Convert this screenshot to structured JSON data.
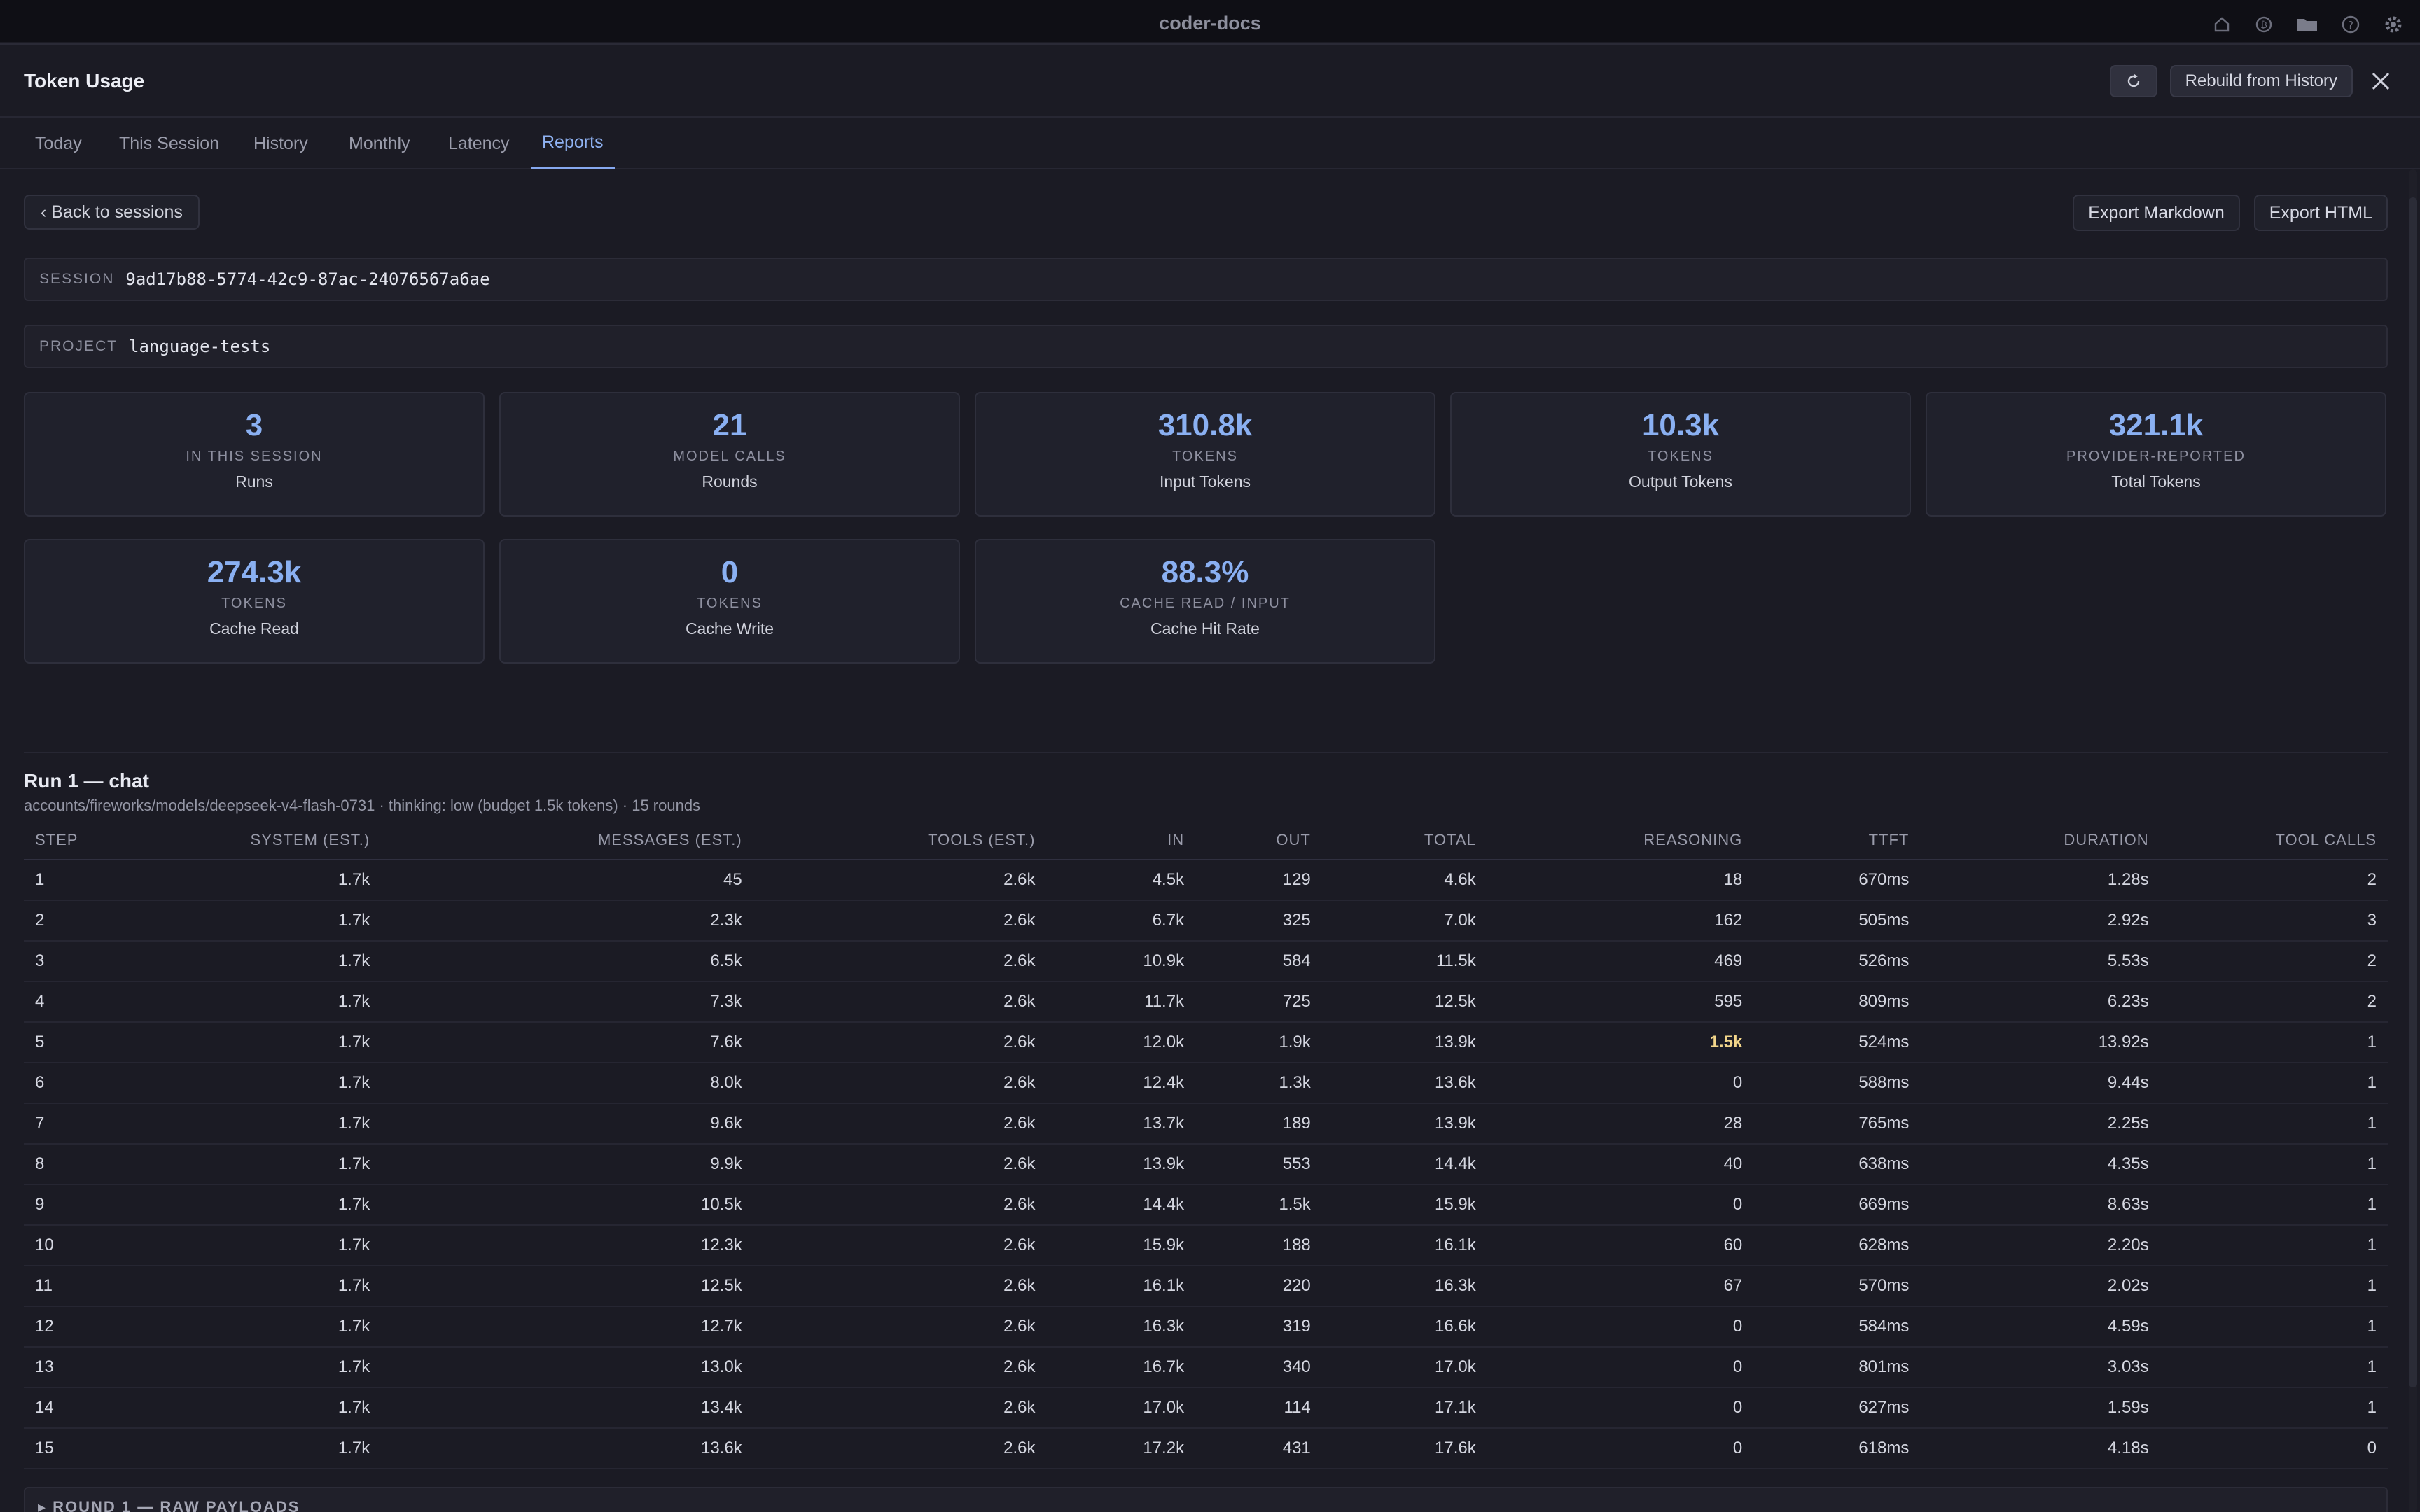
{
  "window": {
    "title": "coder-docs",
    "icons": [
      "home-icon",
      "coin-icon",
      "folder-icon",
      "help-icon",
      "settings-icon"
    ]
  },
  "panel": {
    "title": "Token Usage",
    "rebuild_label": "Rebuild from History",
    "refresh_icon": "refresh-icon",
    "close_icon": "close-icon"
  },
  "tabs": [
    {
      "label": "Today",
      "active": false
    },
    {
      "label": "This Session",
      "active": false
    },
    {
      "label": "History",
      "active": false
    },
    {
      "label": "Monthly",
      "active": false
    },
    {
      "label": "Latency",
      "active": false
    },
    {
      "label": "Reports",
      "active": true
    }
  ],
  "toolbar": {
    "back_label": "‹ Back to sessions",
    "export_markdown": "Export Markdown",
    "export_html": "Export HTML"
  },
  "session": {
    "label": "SESSION",
    "value": "9ad17b88-5774-42c9-87ac-24076567a6ae"
  },
  "project": {
    "label": "PROJECT",
    "value": "language-tests"
  },
  "stats": [
    {
      "value": "3",
      "sub": "IN THIS SESSION",
      "label": "Runs"
    },
    {
      "value": "21",
      "sub": "MODEL CALLS",
      "label": "Rounds"
    },
    {
      "value": "310.8k",
      "sub": "TOKENS",
      "label": "Input Tokens"
    },
    {
      "value": "10.3k",
      "sub": "TOKENS",
      "label": "Output Tokens"
    },
    {
      "value": "321.1k",
      "sub": "PROVIDER-REPORTED",
      "label": "Total Tokens"
    },
    {
      "value": "274.3k",
      "sub": "TOKENS",
      "label": "Cache Read"
    },
    {
      "value": "0",
      "sub": "TOKENS",
      "label": "Cache Write"
    },
    {
      "value": "88.3%",
      "sub": "CACHE READ / INPUT",
      "label": "Cache Hit Rate"
    }
  ],
  "run": {
    "title": "Run 1 — chat",
    "subtitle": "accounts/fireworks/models/deepseek-v4-flash-0731 · thinking: low (budget 1.5k tokens) · 15 rounds"
  },
  "table": {
    "headers": [
      "STEP",
      "SYSTEM (EST.)",
      "MESSAGES (EST.)",
      "TOOLS (EST.)",
      "IN",
      "OUT",
      "TOTAL",
      "REASONING",
      "TTFT",
      "DURATION",
      "TOOL CALLS"
    ],
    "rows": [
      [
        "1",
        "1.7k",
        "45",
        "2.6k",
        "4.5k",
        "129",
        "4.6k",
        "18",
        "670ms",
        "1.28s",
        "2"
      ],
      [
        "2",
        "1.7k",
        "2.3k",
        "2.6k",
        "6.7k",
        "325",
        "7.0k",
        "162",
        "505ms",
        "2.92s",
        "3"
      ],
      [
        "3",
        "1.7k",
        "6.5k",
        "2.6k",
        "10.9k",
        "584",
        "11.5k",
        "469",
        "526ms",
        "5.53s",
        "2"
      ],
      [
        "4",
        "1.7k",
        "7.3k",
        "2.6k",
        "11.7k",
        "725",
        "12.5k",
        "595",
        "809ms",
        "6.23s",
        "2"
      ],
      [
        "5",
        "1.7k",
        "7.6k",
        "2.6k",
        "12.0k",
        "1.9k",
        "13.9k",
        "1.5k",
        "524ms",
        "13.92s",
        "1"
      ],
      [
        "6",
        "1.7k",
        "8.0k",
        "2.6k",
        "12.4k",
        "1.3k",
        "13.6k",
        "0",
        "588ms",
        "9.44s",
        "1"
      ],
      [
        "7",
        "1.7k",
        "9.6k",
        "2.6k",
        "13.7k",
        "189",
        "13.9k",
        "28",
        "765ms",
        "2.25s",
        "1"
      ],
      [
        "8",
        "1.7k",
        "9.9k",
        "2.6k",
        "13.9k",
        "553",
        "14.4k",
        "40",
        "638ms",
        "4.35s",
        "1"
      ],
      [
        "9",
        "1.7k",
        "10.5k",
        "2.6k",
        "14.4k",
        "1.5k",
        "15.9k",
        "0",
        "669ms",
        "8.63s",
        "1"
      ],
      [
        "10",
        "1.7k",
        "12.3k",
        "2.6k",
        "15.9k",
        "188",
        "16.1k",
        "60",
        "628ms",
        "2.20s",
        "1"
      ],
      [
        "11",
        "1.7k",
        "12.5k",
        "2.6k",
        "16.1k",
        "220",
        "16.3k",
        "67",
        "570ms",
        "2.02s",
        "1"
      ],
      [
        "12",
        "1.7k",
        "12.7k",
        "2.6k",
        "16.3k",
        "319",
        "16.6k",
        "0",
        "584ms",
        "4.59s",
        "1"
      ],
      [
        "13",
        "1.7k",
        "13.0k",
        "2.6k",
        "16.7k",
        "340",
        "17.0k",
        "0",
        "801ms",
        "3.03s",
        "1"
      ],
      [
        "14",
        "1.7k",
        "13.4k",
        "2.6k",
        "17.0k",
        "114",
        "17.1k",
        "0",
        "627ms",
        "1.59s",
        "1"
      ],
      [
        "15",
        "1.7k",
        "13.6k",
        "2.6k",
        "17.2k",
        "431",
        "17.6k",
        "0",
        "618ms",
        "4.18s",
        "0"
      ]
    ],
    "highlight": {
      "row": 4,
      "col": 7,
      "color": "#f2d58a"
    }
  },
  "raw_payloads": {
    "label": "▸ ROUND 1 — RAW PAYLOADS"
  },
  "colors": {
    "accent": "#8ab0f2",
    "highlight": "#f2d58a",
    "background": "#1b1b24"
  }
}
